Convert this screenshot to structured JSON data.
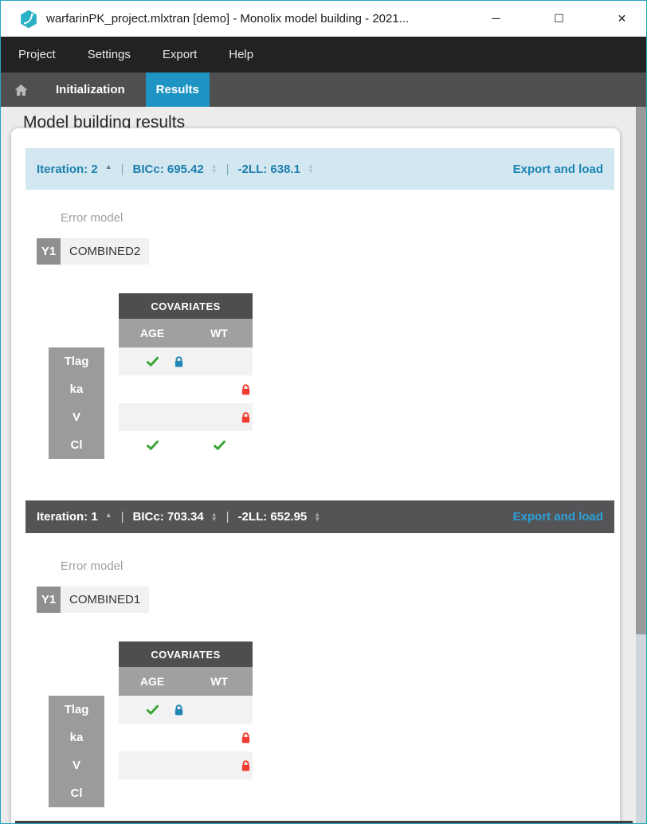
{
  "window": {
    "title": "warfarinPK_project.mlxtran [demo]  - Monolix model building - 2021...",
    "controls": {
      "minimize": "─",
      "maximize": "☐",
      "close": "✕"
    }
  },
  "menu_bar": {
    "items": [
      {
        "label": "Project"
      },
      {
        "label": "Settings"
      },
      {
        "label": "Export"
      },
      {
        "label": "Help"
      }
    ]
  },
  "tab_bar": {
    "tabs": [
      {
        "label": "Initialization",
        "active": false
      },
      {
        "label": "Results",
        "active": true
      }
    ]
  },
  "page": {
    "title": "Model building results"
  },
  "ui": {
    "separator": "|",
    "sort_asc_glyph": "▲",
    "sort_up_glyph": "▲",
    "sort_down_glyph": "▼"
  },
  "colors": {
    "accent_blue": "#1e94c4",
    "selected_bar_bg": "#d3e7f1",
    "selected_bar_text": "#1d7fae",
    "dark_bar_bg": "#545456",
    "export_link": "#2ca0d8",
    "check_green": "#3aa537",
    "lock_blue": "#2185b4",
    "lock_red": "#f03b30"
  },
  "iterations": [
    {
      "iteration_label": "Iteration: 2",
      "bicc_label": "BICc: 695.42",
      "neg2ll_label": "-2LL: 638.1",
      "export_label": "Export and load",
      "selected": true,
      "error_model": {
        "label": "Error model",
        "output": "Y1",
        "value": "COMBINED2"
      },
      "covariates": {
        "title": "COVARIATES",
        "columns": [
          "AGE",
          "WT"
        ],
        "row_labels": [
          "Tlag",
          "ka",
          "V",
          "Cl"
        ],
        "cells": [
          [
            {
              "check": true,
              "lock": "blue"
            },
            {}
          ],
          [
            {},
            {
              "lock": "red"
            }
          ],
          [
            {},
            {
              "lock": "red"
            }
          ],
          [
            {
              "check": true
            },
            {
              "check": true
            }
          ]
        ]
      }
    },
    {
      "iteration_label": "Iteration: 1",
      "bicc_label": "BICc: 703.34",
      "neg2ll_label": "-2LL: 652.95",
      "export_label": "Export and load",
      "selected": false,
      "error_model": {
        "label": "Error model",
        "output": "Y1",
        "value": "COMBINED1"
      },
      "covariates": {
        "title": "COVARIATES",
        "columns": [
          "AGE",
          "WT"
        ],
        "row_labels": [
          "Tlag",
          "ka",
          "V",
          "Cl"
        ],
        "cells": [
          [
            {
              "check": true,
              "lock": "blue"
            },
            {}
          ],
          [
            {},
            {
              "lock": "red"
            }
          ],
          [
            {},
            {
              "lock": "red"
            }
          ],
          [
            {},
            {}
          ]
        ]
      }
    }
  ]
}
